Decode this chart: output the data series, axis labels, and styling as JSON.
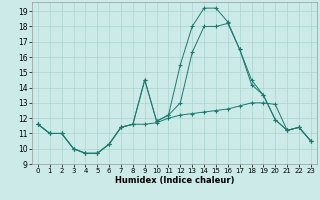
{
  "xlabel": "Humidex (Indice chaleur)",
  "background_color": "#cceae8",
  "line_color": "#1a7a6e",
  "grid_color": "#add4d0",
  "xlim": [
    -0.5,
    23.5
  ],
  "ylim": [
    9,
    19.6
  ],
  "yticks": [
    9,
    10,
    11,
    12,
    13,
    14,
    15,
    16,
    17,
    18,
    19
  ],
  "xticks": [
    0,
    1,
    2,
    3,
    4,
    5,
    6,
    7,
    8,
    9,
    10,
    11,
    12,
    13,
    14,
    15,
    16,
    17,
    18,
    19,
    20,
    21,
    22,
    23
  ],
  "line1_x": [
    0,
    1,
    2,
    3,
    4,
    5,
    6,
    7,
    8,
    9,
    10,
    11,
    12,
    13,
    14,
    15,
    16,
    17,
    18,
    19,
    20,
    21,
    22,
    23
  ],
  "line1_y": [
    11.6,
    11.0,
    11.0,
    10.0,
    9.7,
    9.7,
    10.3,
    11.4,
    11.6,
    11.6,
    11.7,
    12.0,
    12.2,
    12.3,
    12.4,
    12.5,
    12.6,
    12.8,
    13.0,
    13.0,
    12.9,
    11.2,
    11.4,
    10.5
  ],
  "line2_x": [
    0,
    1,
    2,
    3,
    4,
    5,
    6,
    7,
    8,
    9,
    10,
    11,
    12,
    13,
    14,
    15,
    16,
    17,
    18,
    19,
    20,
    21,
    22,
    23
  ],
  "line2_y": [
    11.6,
    11.0,
    11.0,
    10.0,
    9.7,
    9.7,
    10.3,
    11.4,
    11.6,
    14.5,
    11.8,
    12.2,
    13.0,
    16.3,
    18.0,
    18.0,
    18.2,
    16.5,
    14.5,
    13.5,
    11.9,
    11.2,
    11.4,
    10.5
  ],
  "line3_x": [
    0,
    1,
    2,
    3,
    4,
    5,
    6,
    7,
    8,
    9,
    10,
    11,
    12,
    13,
    14,
    15,
    16,
    17,
    18,
    19,
    20,
    21,
    22,
    23
  ],
  "line3_y": [
    11.6,
    11.0,
    11.0,
    10.0,
    9.7,
    9.7,
    10.3,
    11.4,
    11.6,
    14.5,
    11.8,
    12.2,
    15.5,
    18.0,
    19.2,
    19.2,
    18.3,
    16.5,
    14.2,
    13.5,
    11.9,
    11.2,
    11.4,
    10.5
  ]
}
